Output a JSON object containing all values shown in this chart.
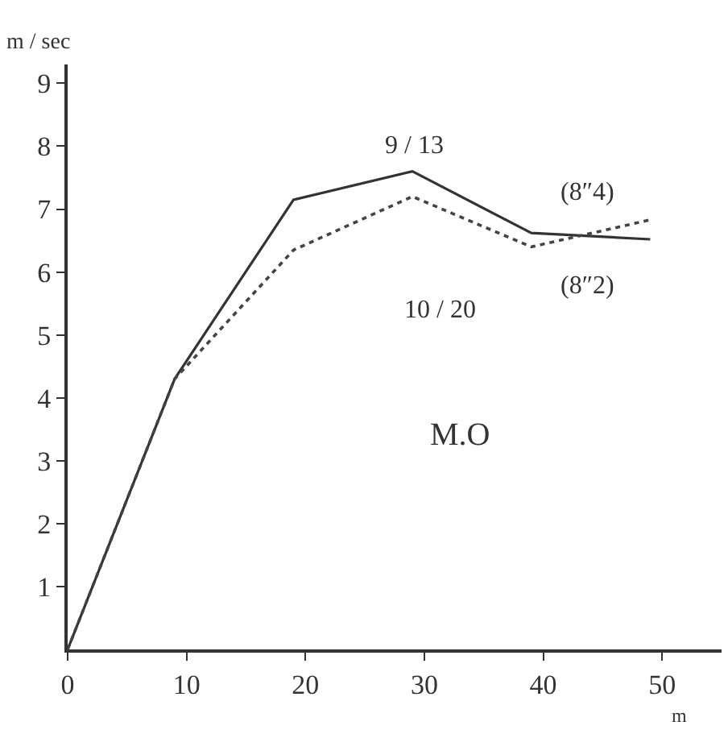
{
  "chart_data": {
    "type": "line",
    "xlabel": "m",
    "ylabel": "m / sec",
    "x": [
      0,
      9,
      19,
      29,
      39,
      49
    ],
    "series": [
      {
        "color": "#333333",
        "line_style": "solid",
        "values": [
          0,
          4.3,
          7.15,
          7.6,
          6.62,
          6.52
        ]
      },
      {
        "color": "#444444",
        "line_style": "dotted",
        "values": [
          0,
          4.3,
          6.35,
          7.2,
          6.4,
          6.83
        ]
      }
    ],
    "xlim": [
      0,
      55
    ],
    "ylim": [
      0,
      9.3
    ],
    "xticks": [
      0,
      10,
      20,
      30,
      40,
      50
    ],
    "yticks": [
      1,
      2,
      3,
      4,
      5,
      6,
      7,
      8,
      9
    ],
    "marker": "none",
    "annotations": [
      "9 / 13",
      "(8″4)",
      "(8″2)",
      "10 / 20",
      "M.O"
    ]
  }
}
